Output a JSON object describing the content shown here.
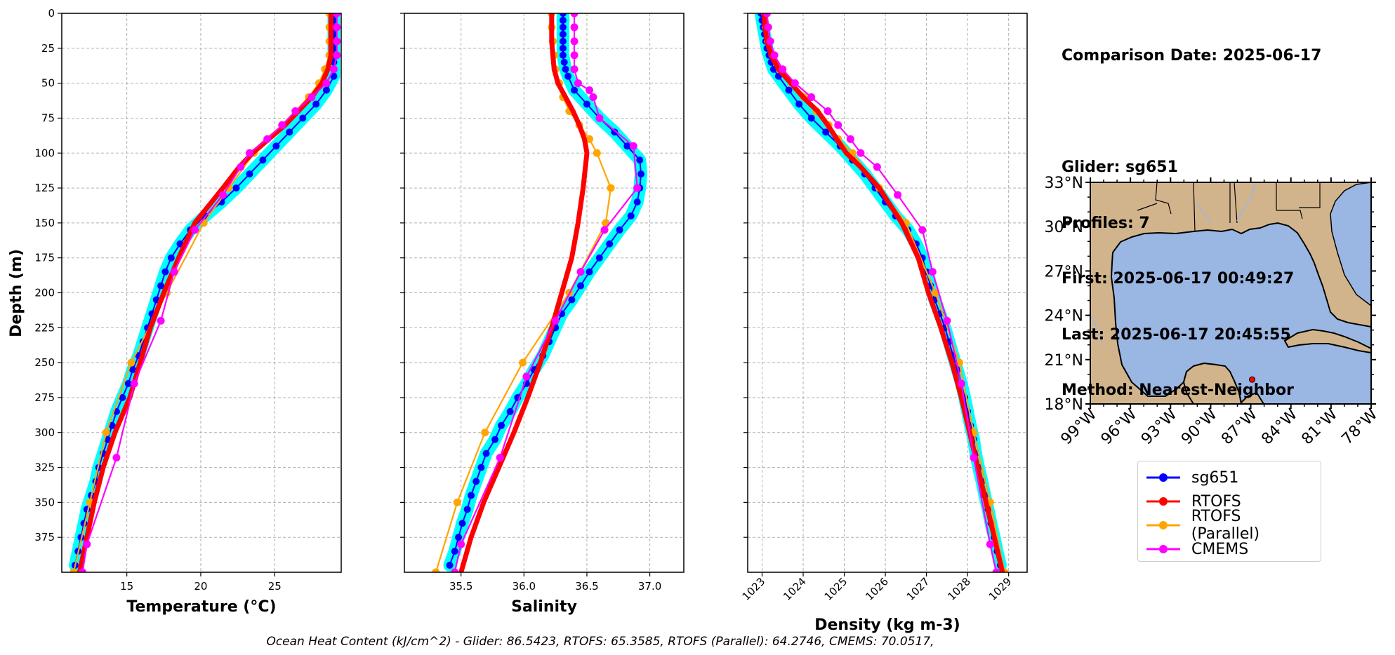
{
  "info": {
    "comparison_date": "Comparison Date: 2025-06-17",
    "glider": "Glider: sg651",
    "profiles": "Profiles: 7",
    "first": "First: 2025-06-17 00:49:27",
    "last": "Last: 2025-06-17 20:45:55",
    "method": "Method: Nearest-Neighbor"
  },
  "footer": "Ocean Heat Content (kJ/cm^2) - Glider: 86.5423,  RTOFS: 65.3585,  RTOFS (Parallel): 64.2746,  CMEMS: 70.0517,",
  "colors": {
    "glider": "#0000ff",
    "glider_spread": "#00ffff",
    "rtofs": "#ff0000",
    "rtofs_parallel": "#ffa500",
    "cmems": "#ff00ff",
    "land": "#d2b48c",
    "water": "#9ab6e3",
    "grid": "#b0b0b0"
  },
  "legend": [
    {
      "label": "sg651",
      "color": "#0000ff"
    },
    {
      "label": "RTOFS",
      "color": "#ff0000"
    },
    {
      "label": "RTOFS (Parallel)",
      "color": "#ffa500"
    },
    {
      "label": "CMEMS",
      "color": "#ff00ff"
    }
  ],
  "chart_data": [
    {
      "type": "line",
      "xlabel": "Temperature (°C)",
      "ylabel": "Depth (m)",
      "xlim": [
        10.6,
        29.5
      ],
      "ylim": [
        400,
        0
      ],
      "xticks": [
        15,
        20,
        25
      ],
      "yticks": [
        0,
        25,
        50,
        75,
        100,
        125,
        150,
        175,
        200,
        225,
        250,
        275,
        300,
        325,
        350,
        375
      ],
      "grid": true,
      "series": [
        {
          "name": "sg651",
          "depth": [
            0,
            5,
            10,
            15,
            20,
            25,
            30,
            35,
            40,
            45,
            55,
            65,
            75,
            85,
            95,
            105,
            115,
            125,
            135,
            145,
            155,
            165,
            175,
            185,
            195,
            205,
            215,
            225,
            235,
            245,
            255,
            265,
            275,
            285,
            295,
            305,
            315,
            325,
            335,
            345,
            355,
            365,
            375,
            385,
            395
          ],
          "values": [
            29.0,
            29.0,
            29.0,
            29.0,
            29.0,
            29.0,
            29.0,
            29.0,
            29.0,
            29.0,
            28.5,
            27.8,
            26.9,
            26.0,
            25.1,
            24.2,
            23.3,
            22.4,
            21.4,
            20.3,
            19.3,
            18.6,
            18.0,
            17.6,
            17.3,
            17.0,
            16.7,
            16.4,
            16.1,
            15.8,
            15.4,
            15.1,
            14.7,
            14.3,
            14.0,
            13.7,
            13.4,
            13.1,
            12.9,
            12.6,
            12.3,
            12.1,
            11.9,
            11.7,
            11.5
          ]
        },
        {
          "name": "RTOFS",
          "depth": [
            0,
            10,
            20,
            30,
            40,
            50,
            60,
            70,
            80,
            90,
            100,
            110,
            125,
            150,
            175,
            200,
            225,
            250,
            275,
            300,
            325,
            350,
            375,
            400
          ],
          "values": [
            28.8,
            28.8,
            28.8,
            28.8,
            28.6,
            28.2,
            27.5,
            26.6,
            25.7,
            24.6,
            23.5,
            22.6,
            21.5,
            19.6,
            18.5,
            17.5,
            16.6,
            15.9,
            15.2,
            14.2,
            13.4,
            12.8,
            12.3,
            11.8
          ]
        },
        {
          "name": "RTOFS (Parallel)",
          "depth": [
            0,
            10,
            20,
            30,
            40,
            50,
            60,
            70,
            80,
            90,
            100,
            125,
            150,
            200,
            250,
            300,
            350,
            400
          ],
          "values": [
            28.7,
            28.7,
            28.7,
            28.7,
            28.4,
            28.0,
            27.3,
            26.4,
            25.5,
            24.5,
            23.6,
            21.9,
            20.2,
            17.7,
            15.3,
            13.6,
            12.5,
            11.4
          ]
        },
        {
          "name": "CMEMS",
          "depth": [
            0,
            10,
            20,
            30,
            40,
            50,
            60,
            70,
            80,
            90,
            100,
            110,
            130,
            155,
            185,
            220,
            265,
            318,
            380,
            400
          ],
          "values": [
            29.2,
            29.2,
            29.2,
            29.2,
            29.0,
            28.5,
            27.5,
            26.4,
            25.5,
            24.5,
            23.3,
            22.7,
            21.5,
            19.6,
            18.2,
            17.3,
            15.5,
            14.3,
            12.3,
            12.0
          ]
        }
      ]
    },
    {
      "type": "line",
      "xlabel": "Salinity",
      "xlim": [
        35.05,
        37.27
      ],
      "ylim": [
        400,
        0
      ],
      "xticks": [
        35.5,
        36.0,
        36.5,
        37.0
      ],
      "grid": true,
      "series": [
        {
          "name": "sg651",
          "depth": [
            0,
            5,
            10,
            15,
            20,
            25,
            30,
            35,
            40,
            45,
            55,
            65,
            75,
            85,
            95,
            105,
            115,
            125,
            135,
            145,
            155,
            165,
            175,
            185,
            195,
            205,
            215,
            225,
            235,
            245,
            255,
            265,
            275,
            285,
            295,
            305,
            315,
            325,
            335,
            345,
            355,
            365,
            375,
            385,
            395
          ],
          "values": [
            36.31,
            36.31,
            36.31,
            36.31,
            36.31,
            36.31,
            36.31,
            36.32,
            36.33,
            36.35,
            36.4,
            36.5,
            36.6,
            36.72,
            36.82,
            36.92,
            36.93,
            36.92,
            36.9,
            36.85,
            36.76,
            36.68,
            36.6,
            36.52,
            36.45,
            36.38,
            36.3,
            36.25,
            36.2,
            36.15,
            36.08,
            36.02,
            35.95,
            35.89,
            35.82,
            35.77,
            35.7,
            35.66,
            35.62,
            35.58,
            35.55,
            35.51,
            35.48,
            35.45,
            35.41
          ]
        },
        {
          "name": "RTOFS",
          "depth": [
            0,
            10,
            20,
            30,
            40,
            50,
            60,
            70,
            80,
            90,
            100,
            125,
            150,
            175,
            200,
            225,
            250,
            275,
            300,
            325,
            350,
            375,
            400
          ],
          "values": [
            36.22,
            36.22,
            36.22,
            36.23,
            36.24,
            36.27,
            36.33,
            36.39,
            36.44,
            36.48,
            36.5,
            36.47,
            36.43,
            36.38,
            36.3,
            36.22,
            36.13,
            36.03,
            35.92,
            35.8,
            35.68,
            35.58,
            35.5
          ]
        },
        {
          "name": "RTOFS (Parallel)",
          "depth": [
            0,
            10,
            20,
            30,
            40,
            50,
            60,
            70,
            80,
            90,
            100,
            125,
            150,
            200,
            250,
            300,
            350,
            400
          ],
          "values": [
            36.22,
            36.22,
            36.23,
            36.24,
            36.25,
            36.28,
            36.31,
            36.36,
            36.44,
            36.52,
            36.58,
            36.69,
            36.65,
            36.36,
            35.99,
            35.69,
            35.47,
            35.3
          ]
        },
        {
          "name": "CMEMS",
          "depth": [
            0,
            10,
            20,
            30,
            40,
            50,
            55,
            60,
            75,
            95,
            125,
            155,
            185,
            220,
            260,
            318,
            380,
            400
          ],
          "values": [
            36.4,
            36.4,
            36.4,
            36.4,
            36.4,
            36.43,
            36.52,
            36.55,
            36.6,
            36.87,
            36.9,
            36.64,
            36.45,
            36.25,
            36.02,
            35.81,
            35.5,
            35.45
          ]
        }
      ]
    },
    {
      "type": "line",
      "xlabel": "Density (kg m-3)",
      "xlim": [
        1022.65,
        1029.45
      ],
      "ylim": [
        400,
        0
      ],
      "xticks": [
        1023,
        1024,
        1025,
        1026,
        1027,
        1028,
        1029
      ],
      "grid": true,
      "series": [
        {
          "name": "sg651",
          "depth": [
            0,
            5,
            10,
            15,
            20,
            25,
            30,
            35,
            40,
            45,
            55,
            65,
            75,
            85,
            95,
            105,
            115,
            125,
            135,
            145,
            155,
            165,
            175,
            185,
            195,
            205,
            215,
            225,
            235,
            245,
            255,
            265,
            275,
            285,
            295,
            305,
            315,
            325,
            335,
            345,
            355,
            365,
            375,
            385,
            395
          ],
          "values": [
            1022.97,
            1023.0,
            1023.03,
            1023.06,
            1023.09,
            1023.12,
            1023.17,
            1023.22,
            1023.28,
            1023.4,
            1023.65,
            1023.9,
            1024.2,
            1024.55,
            1024.9,
            1025.2,
            1025.5,
            1025.75,
            1026.0,
            1026.25,
            1026.55,
            1026.75,
            1026.9,
            1027.0,
            1027.1,
            1027.2,
            1027.33,
            1027.45,
            1027.55,
            1027.65,
            1027.75,
            1027.85,
            1027.93,
            1028.0,
            1028.07,
            1028.15,
            1028.2,
            1028.27,
            1028.35,
            1028.42,
            1028.5,
            1028.57,
            1028.65,
            1028.72,
            1028.8
          ]
        },
        {
          "name": "RTOFS",
          "depth": [
            0,
            10,
            20,
            30,
            40,
            50,
            60,
            70,
            80,
            90,
            100,
            110,
            125,
            150,
            175,
            200,
            225,
            250,
            275,
            300,
            325,
            350,
            375,
            400
          ],
          "values": [
            1023.05,
            1023.07,
            1023.12,
            1023.22,
            1023.4,
            1023.7,
            1024.0,
            1024.35,
            1024.6,
            1024.82,
            1025.05,
            1025.4,
            1025.85,
            1026.4,
            1026.8,
            1027.05,
            1027.35,
            1027.62,
            1027.85,
            1028.05,
            1028.25,
            1028.45,
            1028.65,
            1028.85
          ]
        },
        {
          "name": "RTOFS (Parallel)",
          "depth": [
            0,
            10,
            20,
            30,
            40,
            50,
            60,
            70,
            80,
            90,
            100,
            125,
            150,
            200,
            250,
            300,
            350,
            400
          ],
          "values": [
            1023.07,
            1023.09,
            1023.14,
            1023.25,
            1023.43,
            1023.72,
            1024.02,
            1024.32,
            1024.62,
            1024.85,
            1025.2,
            1025.85,
            1026.5,
            1027.22,
            1027.8,
            1028.15,
            1028.55,
            1028.9
          ]
        },
        {
          "name": "CMEMS",
          "depth": [
            0,
            10,
            20,
            30,
            40,
            50,
            60,
            70,
            80,
            90,
            100,
            110,
            130,
            155,
            185,
            220,
            265,
            318,
            380,
            400
          ],
          "values": [
            1023.12,
            1023.15,
            1023.2,
            1023.3,
            1023.5,
            1023.8,
            1024.2,
            1024.6,
            1024.85,
            1025.15,
            1025.4,
            1025.8,
            1026.3,
            1026.9,
            1027.15,
            1027.5,
            1027.85,
            1028.15,
            1028.55,
            1028.7
          ]
        }
      ]
    },
    {
      "type": "map",
      "lon_ticks": [
        "99°W",
        "96°W",
        "93°W",
        "90°W",
        "87°W",
        "84°W",
        "81°W",
        "78°W"
      ],
      "lat_ticks": [
        "33°N",
        "30°N",
        "27°N",
        "24°N",
        "21°N",
        "18°N"
      ],
      "lon_range": [
        -99,
        -78
      ],
      "lat_range": [
        18,
        33
      ],
      "glider_position": [
        -86.9,
        19.65
      ]
    }
  ]
}
